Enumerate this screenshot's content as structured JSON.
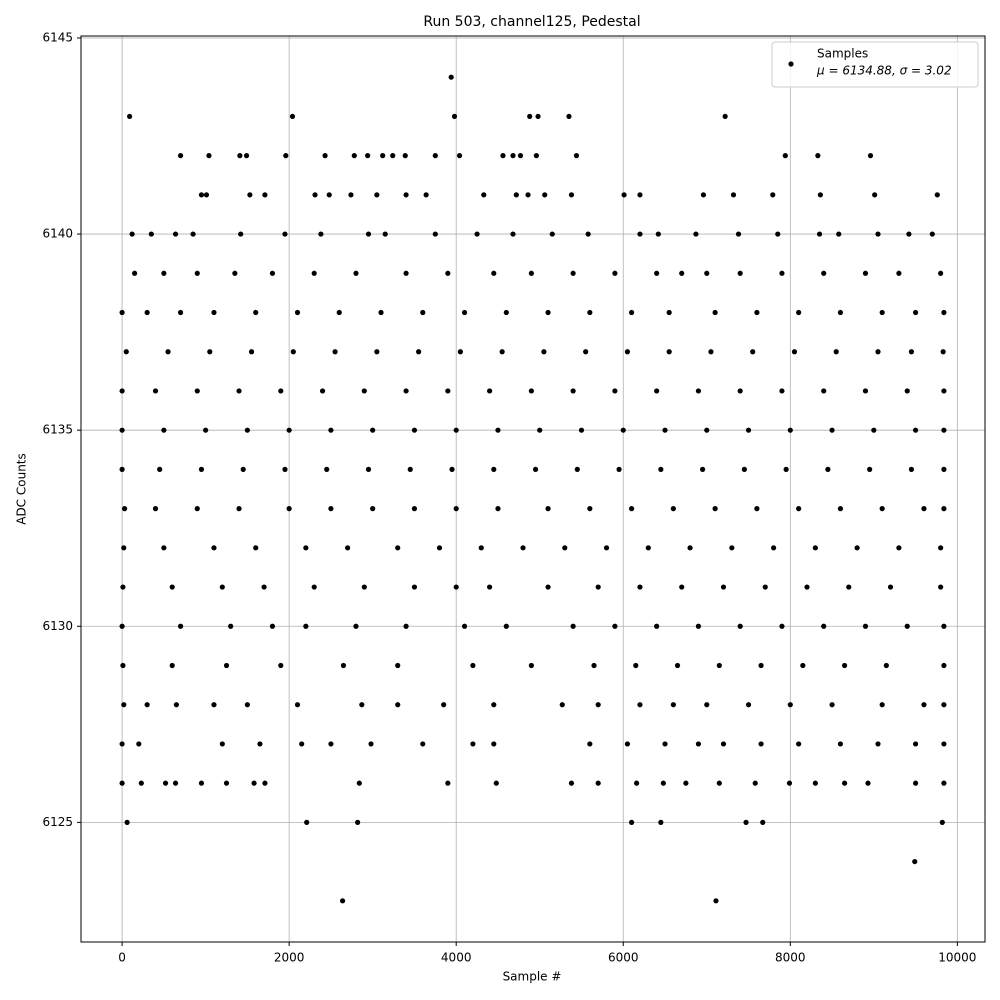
{
  "chart_data": {
    "type": "scatter",
    "title": "Run 503, channel125, Pedestal",
    "x_label": "Sample #",
    "y_label": "ADC Counts",
    "xlim": [
      -492,
      10331
    ],
    "ylim": [
      6121.95,
      6145.05
    ],
    "xticks": [
      0,
      2000,
      4000,
      6000,
      8000,
      10000
    ],
    "yticks": [
      6125,
      6130,
      6135,
      6140,
      6145
    ],
    "grid": true,
    "legend_position": "upper right",
    "legend_note": "μ = 6134.88, σ = 3.02",
    "x": [
      3940,
      90,
      2040,
      3980,
      4880,
      4980,
      5350,
      7220,
      700,
      1040,
      1410,
      1490,
      1960,
      2430,
      2780,
      2940,
      3120,
      3240,
      3390,
      3750,
      4040,
      4560,
      4680,
      4770,
      4960,
      5440,
      7940,
      8330,
      8960,
      950,
      1010,
      1530,
      1710,
      2310,
      2480,
      2740,
      3050,
      3400,
      3640,
      4330,
      4720,
      4860,
      5060,
      5380,
      6010,
      6200,
      6960,
      7320,
      7790,
      8360,
      9010,
      9760,
      120,
      350,
      640,
      850,
      1420,
      1950,
      2380,
      2950,
      3150,
      3750,
      4250,
      4680,
      5150,
      5580,
      6200,
      6420,
      6870,
      7380,
      7850,
      8350,
      8580,
      9050,
      9420,
      9700,
      150,
      500,
      900,
      1350,
      1800,
      2300,
      2800,
      3400,
      3900,
      4450,
      4900,
      5400,
      5900,
      6400,
      6700,
      7000,
      7400,
      7900,
      8400,
      8900,
      9300,
      9800,
      0,
      300,
      700,
      1100,
      1600,
      2100,
      2600,
      3100,
      3600,
      4100,
      4600,
      5100,
      5600,
      6100,
      6550,
      7100,
      7600,
      8100,
      8600,
      9100,
      9500,
      9839,
      50,
      550,
      1050,
      1550,
      2050,
      2550,
      3050,
      3550,
      4050,
      4550,
      5050,
      5550,
      6050,
      6550,
      7050,
      7550,
      8050,
      8550,
      9050,
      9450,
      9830,
      0,
      400,
      900,
      1400,
      1900,
      2400,
      2900,
      3400,
      3900,
      4400,
      4900,
      5400,
      5900,
      6400,
      6900,
      7400,
      7900,
      8400,
      8900,
      9400,
      9839,
      0,
      500,
      1000,
      1500,
      2000,
      2500,
      3000,
      3500,
      4000,
      4500,
      5000,
      5500,
      6000,
      6500,
      7000,
      7500,
      8000,
      8500,
      9000,
      9500,
      9839,
      0,
      450,
      950,
      1450,
      1950,
      2450,
      2950,
      3450,
      3950,
      4450,
      4950,
      5450,
      5950,
      6450,
      6950,
      7450,
      7950,
      8450,
      8950,
      9450,
      9839,
      30,
      400,
      900,
      1400,
      2000,
      2500,
      3000,
      3500,
      4000,
      4500,
      5100,
      5600,
      6100,
      6600,
      7100,
      7600,
      8100,
      8600,
      9100,
      9600,
      9839,
      20,
      500,
      1100,
      1600,
      2200,
      2700,
      3300,
      3800,
      4300,
      4800,
      5300,
      5800,
      6300,
      6800,
      7300,
      7800,
      8300,
      8800,
      9300,
      9800,
      10,
      600,
      1200,
      1700,
      2300,
      2900,
      3500,
      4000,
      4400,
      5100,
      5700,
      6200,
      6700,
      7200,
      7700,
      8200,
      8700,
      9200,
      9800,
      0,
      700,
      1300,
      1800,
      2200,
      2800,
      3400,
      4100,
      4600,
      5400,
      5900,
      6400,
      6900,
      7400,
      7900,
      8400,
      8900,
      9400,
      9839,
      10,
      600,
      1250,
      1900,
      2650,
      3300,
      4200,
      4900,
      5650,
      6150,
      6650,
      7150,
      7650,
      8150,
      8650,
      9150,
      9839,
      20,
      300,
      650,
      1100,
      1500,
      2100,
      2870,
      3300,
      3850,
      4450,
      5270,
      5700,
      6200,
      6600,
      7000,
      7500,
      8000,
      8500,
      9100,
      9600,
      9839,
      0,
      200,
      1200,
      1650,
      2150,
      2500,
      2980,
      3600,
      4200,
      4450,
      5600,
      6050,
      6500,
      6900,
      7200,
      7650,
      8100,
      8600,
      9050,
      9500,
      9839,
      0,
      230,
      520,
      640,
      950,
      1250,
      1580,
      1710,
      2840,
      3900,
      4480,
      5380,
      5700,
      6160,
      6480,
      6750,
      7150,
      7580,
      7990,
      8300,
      8650,
      8930,
      9500,
      9839,
      60,
      2210,
      2820,
      6100,
      6450,
      7470,
      7670,
      9820,
      9490,
      2640,
      7110
    ],
    "series": [
      {
        "name": "Samples",
        "color": "#000000",
        "values": [
          6144,
          6143,
          6143,
          6143,
          6143,
          6143,
          6143,
          6143,
          6142,
          6142,
          6142,
          6142,
          6142,
          6142,
          6142,
          6142,
          6142,
          6142,
          6142,
          6142,
          6142,
          6142,
          6142,
          6142,
          6142,
          6142,
          6142,
          6142,
          6142,
          6141,
          6141,
          6141,
          6141,
          6141,
          6141,
          6141,
          6141,
          6141,
          6141,
          6141,
          6141,
          6141,
          6141,
          6141,
          6141,
          6141,
          6141,
          6141,
          6141,
          6141,
          6141,
          6141,
          6140,
          6140,
          6140,
          6140,
          6140,
          6140,
          6140,
          6140,
          6140,
          6140,
          6140,
          6140,
          6140,
          6140,
          6140,
          6140,
          6140,
          6140,
          6140,
          6140,
          6140,
          6140,
          6140,
          6140,
          6139,
          6139,
          6139,
          6139,
          6139,
          6139,
          6139,
          6139,
          6139,
          6139,
          6139,
          6139,
          6139,
          6139,
          6139,
          6139,
          6139,
          6139,
          6139,
          6139,
          6139,
          6139,
          6138,
          6138,
          6138,
          6138,
          6138,
          6138,
          6138,
          6138,
          6138,
          6138,
          6138,
          6138,
          6138,
          6138,
          6138,
          6138,
          6138,
          6138,
          6138,
          6138,
          6138,
          6138,
          6137,
          6137,
          6137,
          6137,
          6137,
          6137,
          6137,
          6137,
          6137,
          6137,
          6137,
          6137,
          6137,
          6137,
          6137,
          6137,
          6137,
          6137,
          6137,
          6137,
          6137,
          6136,
          6136,
          6136,
          6136,
          6136,
          6136,
          6136,
          6136,
          6136,
          6136,
          6136,
          6136,
          6136,
          6136,
          6136,
          6136,
          6136,
          6136,
          6136,
          6136,
          6136,
          6135,
          6135,
          6135,
          6135,
          6135,
          6135,
          6135,
          6135,
          6135,
          6135,
          6135,
          6135,
          6135,
          6135,
          6135,
          6135,
          6135,
          6135,
          6135,
          6135,
          6135,
          6134,
          6134,
          6134,
          6134,
          6134,
          6134,
          6134,
          6134,
          6134,
          6134,
          6134,
          6134,
          6134,
          6134,
          6134,
          6134,
          6134,
          6134,
          6134,
          6134,
          6134,
          6133,
          6133,
          6133,
          6133,
          6133,
          6133,
          6133,
          6133,
          6133,
          6133,
          6133,
          6133,
          6133,
          6133,
          6133,
          6133,
          6133,
          6133,
          6133,
          6133,
          6133,
          6132,
          6132,
          6132,
          6132,
          6132,
          6132,
          6132,
          6132,
          6132,
          6132,
          6132,
          6132,
          6132,
          6132,
          6132,
          6132,
          6132,
          6132,
          6132,
          6132,
          6131,
          6131,
          6131,
          6131,
          6131,
          6131,
          6131,
          6131,
          6131,
          6131,
          6131,
          6131,
          6131,
          6131,
          6131,
          6131,
          6131,
          6131,
          6131,
          6130,
          6130,
          6130,
          6130,
          6130,
          6130,
          6130,
          6130,
          6130,
          6130,
          6130,
          6130,
          6130,
          6130,
          6130,
          6130,
          6130,
          6130,
          6130,
          6129,
          6129,
          6129,
          6129,
          6129,
          6129,
          6129,
          6129,
          6129,
          6129,
          6129,
          6129,
          6129,
          6129,
          6129,
          6129,
          6129,
          6128,
          6128,
          6128,
          6128,
          6128,
          6128,
          6128,
          6128,
          6128,
          6128,
          6128,
          6128,
          6128,
          6128,
          6128,
          6128,
          6128,
          6128,
          6128,
          6128,
          6128,
          6127,
          6127,
          6127,
          6127,
          6127,
          6127,
          6127,
          6127,
          6127,
          6127,
          6127,
          6127,
          6127,
          6127,
          6127,
          6127,
          6127,
          6127,
          6127,
          6127,
          6127,
          6126,
          6126,
          6126,
          6126,
          6126,
          6126,
          6126,
          6126,
          6126,
          6126,
          6126,
          6126,
          6126,
          6126,
          6126,
          6126,
          6126,
          6126,
          6126,
          6126,
          6126,
          6126,
          6126,
          6126,
          6125,
          6125,
          6125,
          6125,
          6125,
          6125,
          6125,
          6125,
          6124,
          6123,
          6123
        ]
      }
    ]
  }
}
